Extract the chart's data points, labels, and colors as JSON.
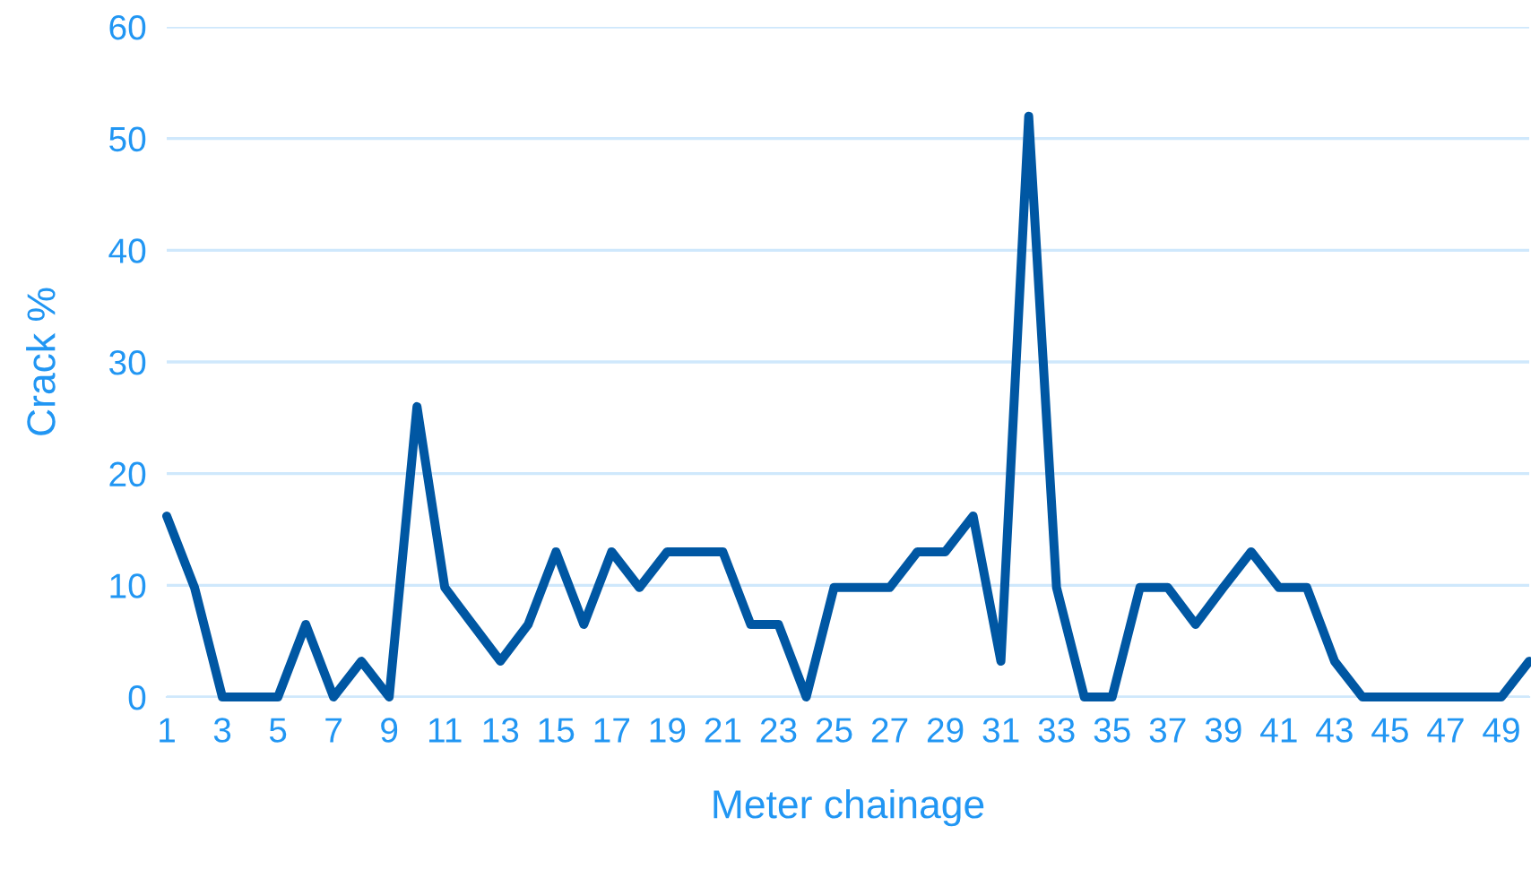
{
  "chart_data": {
    "type": "line",
    "xlabel": "Meter chainage",
    "ylabel": "Crack %",
    "categories": [
      "1",
      null,
      "3",
      null,
      "5",
      null,
      "7",
      null,
      "9",
      null,
      "11",
      null,
      "13",
      null,
      "15",
      null,
      "17",
      null,
      "19",
      null,
      "21",
      null,
      "23",
      null,
      "25",
      null,
      "27",
      null,
      "29",
      null,
      "31",
      null,
      "33",
      null,
      "35",
      null,
      "37",
      null,
      "39",
      null,
      "41",
      null,
      "43",
      null,
      "45",
      null,
      "47",
      null,
      "49",
      null
    ],
    "series": [
      {
        "color": "#0057a3",
        "values": [
          16.2,
          9.8,
          0,
          0,
          0,
          6.5,
          0,
          3.2,
          0,
          26,
          9.8,
          6.5,
          3.2,
          6.5,
          13,
          6.5,
          13,
          9.8,
          13,
          13,
          13,
          6.5,
          6.5,
          0,
          9.8,
          9.8,
          9.8,
          13,
          13,
          16.2,
          3.2,
          52,
          9.8,
          0,
          0,
          9.8,
          9.8,
          6.5,
          9.8,
          13,
          9.8,
          9.8,
          3.2,
          0,
          0,
          0,
          0,
          0,
          0,
          3.2
        ]
      }
    ],
    "ylim": [
      0,
      60
    ],
    "yticks": [
      0,
      10,
      20,
      30,
      40,
      50,
      60
    ],
    "grid": "y",
    "marker": "none",
    "line_style": "solid"
  }
}
